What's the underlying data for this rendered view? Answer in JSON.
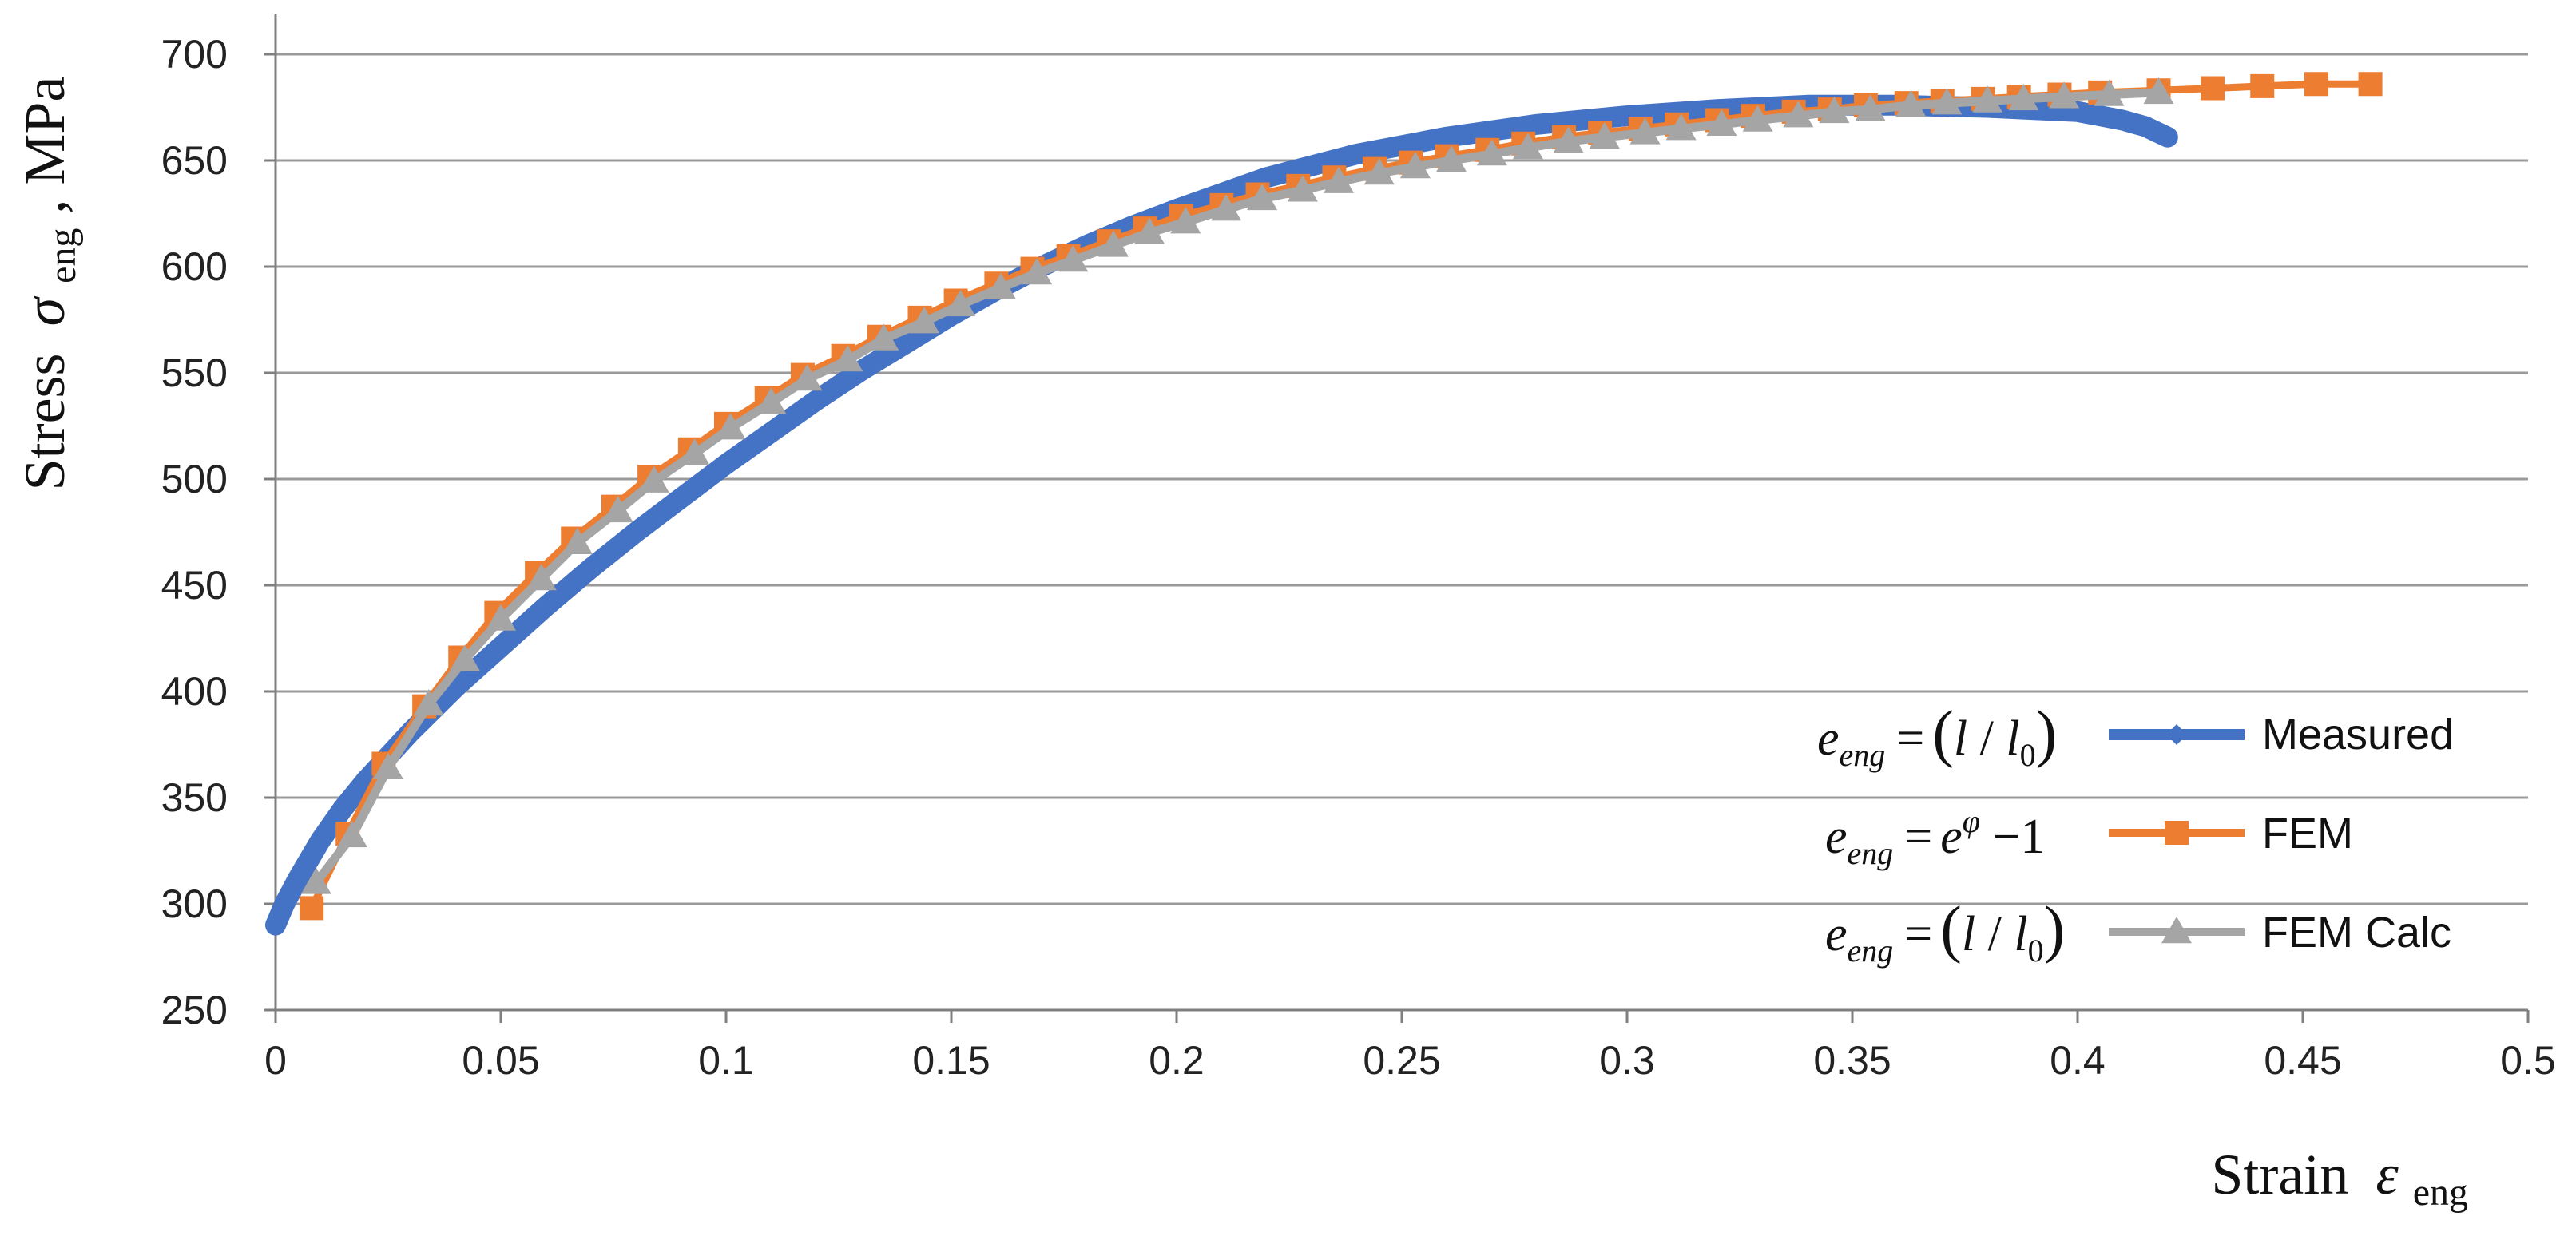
{
  "chart_data": {
    "type": "line",
    "title": "",
    "xlabel": "Strain",
    "xlabel_symbol": "ε",
    "xlabel_sub": "eng",
    "ylabel": "Stress",
    "ylabel_symbol": "σ",
    "ylabel_sub": "eng",
    "ylabel_unit": ", MPa",
    "xlim": [
      0,
      0.5
    ],
    "ylim": [
      250,
      700
    ],
    "x_ticks": [
      0,
      0.05,
      0.1,
      0.15,
      0.2,
      0.25,
      0.3,
      0.35,
      0.4,
      0.45,
      0.5
    ],
    "x_tick_labels": [
      "0",
      "0.05",
      "0.1",
      "0.15",
      "0.2",
      "0.25",
      "0.3",
      "0.35",
      "0.4",
      "0.45",
      "0.5"
    ],
    "y_ticks": [
      250,
      300,
      350,
      400,
      450,
      500,
      550,
      600,
      650,
      700
    ],
    "y_tick_labels": [
      "250",
      "300",
      "350",
      "400",
      "450",
      "500",
      "550",
      "600",
      "650",
      "700"
    ],
    "grid": "horizontal",
    "legend_position": "bottom-right",
    "series": [
      {
        "name": "Measured",
        "color": "#4472C4",
        "marker": "diamond",
        "formula": {
          "lhs": "e",
          "sub": "eng",
          "rhs_open": "(",
          "rhs_l": "l",
          "rhs_slash": " / ",
          "rhs_l0": "l",
          "rhs_l0_sub": "0",
          "rhs_close": ")"
        },
        "x": [
          0.0,
          0.002,
          0.005,
          0.01,
          0.015,
          0.02,
          0.03,
          0.04,
          0.05,
          0.06,
          0.07,
          0.08,
          0.09,
          0.1,
          0.11,
          0.12,
          0.13,
          0.14,
          0.15,
          0.16,
          0.17,
          0.18,
          0.19,
          0.2,
          0.22,
          0.24,
          0.26,
          0.28,
          0.3,
          0.32,
          0.34,
          0.36,
          0.38,
          0.39,
          0.4,
          0.405,
          0.41,
          0.415,
          0.42
        ],
        "y": [
          290,
          300,
          312,
          330,
          345,
          358,
          381,
          402,
          421,
          440,
          458,
          475,
          491,
          507,
          522,
          537,
          551,
          564,
          577,
          589,
          600,
          610,
          619,
          627,
          642,
          653,
          661,
          667,
          671,
          674,
          676,
          676,
          675,
          674,
          673,
          671,
          669,
          666,
          661
        ]
      },
      {
        "name": "FEM",
        "color": "#ED7D31",
        "marker": "square",
        "formula": {
          "lhs": "e",
          "sub": "eng",
          "rhs": "e",
          "rhs_sup": "φ",
          "rhs_tail": " −1"
        },
        "x": [
          0.008,
          0.016,
          0.024,
          0.033,
          0.041,
          0.049,
          0.058,
          0.066,
          0.075,
          0.083,
          0.092,
          0.1,
          0.109,
          0.117,
          0.126,
          0.134,
          0.143,
          0.151,
          0.16,
          0.168,
          0.176,
          0.185,
          0.193,
          0.201,
          0.21,
          0.218,
          0.227,
          0.235,
          0.244,
          0.252,
          0.26,
          0.269,
          0.277,
          0.286,
          0.294,
          0.303,
          0.311,
          0.32,
          0.328,
          0.337,
          0.345,
          0.353,
          0.362,
          0.37,
          0.379,
          0.387,
          0.396,
          0.405,
          0.418,
          0.43,
          0.441,
          0.453,
          0.465
        ],
        "y": [
          298,
          333,
          366,
          393,
          416,
          437,
          456,
          472,
          487,
          501,
          514,
          526,
          538,
          549,
          558,
          567,
          576,
          584,
          592,
          599,
          605,
          612,
          618,
          624,
          629,
          634,
          638,
          642,
          646,
          649,
          652,
          655,
          658,
          661,
          663,
          665,
          667,
          669,
          671,
          673,
          674,
          676,
          677,
          678,
          679,
          680,
          681,
          682,
          683,
          684,
          685,
          686,
          686
        ]
      },
      {
        "name": "FEM Calc",
        "color": "#A5A5A5",
        "marker": "triangle",
        "formula": {
          "lhs": "e",
          "sub": "eng",
          "rhs_open": "(",
          "rhs_l": "l",
          "rhs_slash": " / ",
          "rhs_l0": "l",
          "rhs_l0_sub": "0",
          "rhs_close": ")"
        },
        "x": [
          0.009,
          0.017,
          0.025,
          0.034,
          0.042,
          0.05,
          0.059,
          0.067,
          0.076,
          0.084,
          0.093,
          0.101,
          0.11,
          0.118,
          0.127,
          0.135,
          0.144,
          0.152,
          0.161,
          0.169,
          0.177,
          0.186,
          0.194,
          0.202,
          0.211,
          0.219,
          0.228,
          0.236,
          0.245,
          0.253,
          0.261,
          0.27,
          0.278,
          0.287,
          0.295,
          0.304,
          0.312,
          0.321,
          0.329,
          0.338,
          0.346,
          0.354,
          0.363,
          0.371,
          0.38,
          0.388,
          0.397,
          0.407,
          0.418
        ],
        "y": [
          310,
          332,
          364,
          394,
          415,
          434,
          453,
          470,
          485,
          499,
          512,
          524,
          536,
          547,
          556,
          566,
          574,
          582,
          590,
          597,
          603,
          610,
          616,
          621,
          627,
          632,
          636,
          640,
          644,
          647,
          650,
          653,
          656,
          659,
          661,
          663,
          665,
          667,
          669,
          671,
          673,
          674,
          676,
          677,
          678,
          679,
          680,
          681,
          682
        ]
      }
    ]
  }
}
